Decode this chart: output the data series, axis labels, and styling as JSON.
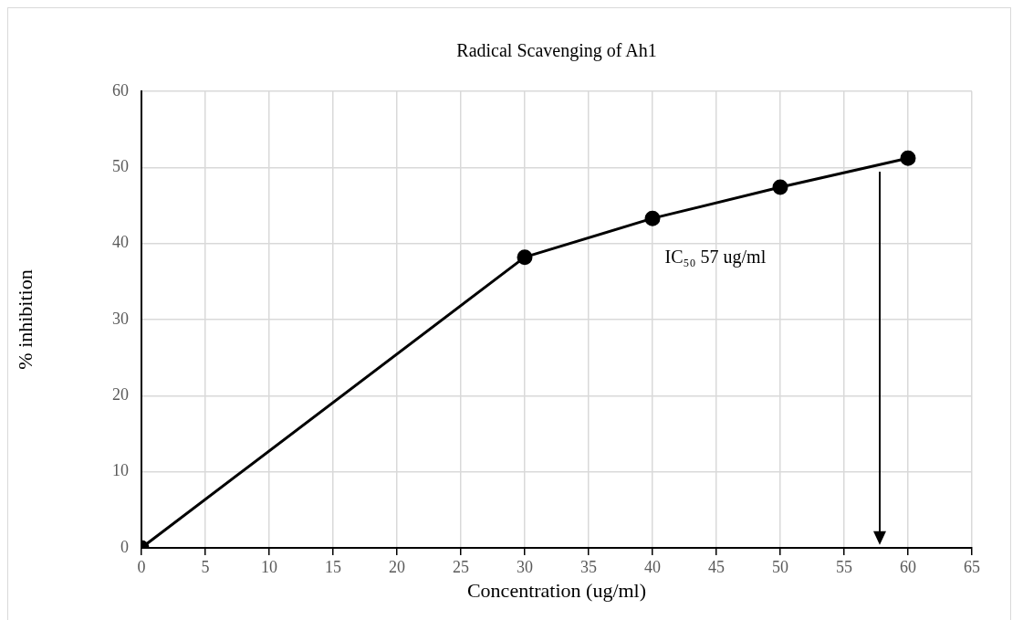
{
  "chart_data": {
    "type": "line",
    "title": "Radical Scavenging of Ah1",
    "xlabel": "Concentration (ug/ml)",
    "ylabel": "% inhibition",
    "x": [
      0,
      30,
      40,
      50,
      60
    ],
    "series": [
      {
        "color": "#000000",
        "values": [
          0,
          38.2,
          43.3,
          47.4,
          51.2
        ]
      }
    ],
    "xlim": [
      0,
      65
    ],
    "xticks": [
      0,
      5,
      10,
      15,
      20,
      25,
      30,
      35,
      40,
      45,
      50,
      55,
      60,
      65
    ],
    "ylim": [
      0,
      60
    ],
    "yticks": [
      0,
      10,
      20,
      30,
      40,
      50,
      60
    ],
    "grid": true,
    "legend": false,
    "marker": "circle",
    "line_style": "solid",
    "ref_lines": [
      {
        "axis": "x",
        "value": 57.8,
        "color": "#000000",
        "label": "IC₅₀ 57 ug/ml"
      }
    ]
  }
}
